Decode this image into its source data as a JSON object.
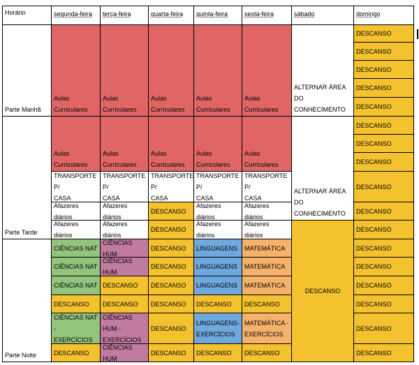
{
  "colors": {
    "red": "#e06666",
    "yellow": "#f4c22f",
    "green": "#93c47d",
    "purple": "#c27ba0",
    "blue": "#6fa8dc",
    "orange": "#f6b26b",
    "white": "#ffffff"
  },
  "header": {
    "horario": "Horário",
    "days": [
      "segunda-feira",
      "terça-feira",
      "quarta-feira",
      "quinta-feira",
      "sexta-feira",
      "sábado",
      "domingo"
    ]
  },
  "periods": [
    "Parte Manhã",
    "Parte Tarde",
    "Parte Noite"
  ],
  "blocks": {
    "manha_aulas": [
      "Aulas\nCurriculares",
      "Aulas\nCurriculares",
      "Aulas\nCurriculares",
      "Aulas\nCurriculares",
      "Aulas\nCurriculares"
    ],
    "sab_manha": "ALTERNAR ÁREA DO\nCONHECIMENTO",
    "tarde_aulas": [
      "Aulas\nCurriculares",
      "Aulas\nCurriculares",
      "Aulas\nCurriculares",
      "Aulas\nCurriculares",
      "Aulas\nCurriculares"
    ],
    "transporte": [
      "TRANSPORTE P/\nCASA",
      "TRANSPORTE P/\nCASA",
      "TRANSPORTE P/\nCASA",
      "TRANSPORTE P/\nCASA",
      "TRANSPORTE P/\nCASA"
    ],
    "afazeres1": [
      "Afazeres diários",
      "Afazeres diários",
      "DESCANSO",
      "Afazeres diários",
      "Afazeres diários"
    ],
    "afazeres2": [
      "Afazeres diários",
      "Afazeres diários",
      "DESCANSO",
      "Afazeres diários",
      "Afazeres diários"
    ],
    "sab_tarde": "ALTERNAR ÁREA DO\nCONHECIMENTO",
    "noite_rows": [
      [
        "CIÊNCIAS NAT",
        "CIÊNCIAS HUM",
        "DESCANSO",
        "LINGUAGENS",
        "MATEMÁTICA"
      ],
      [
        "CIÊNCIAS NAT",
        "CIÊNCIAS HUM",
        "DESCANSO",
        "LINGUAGENS",
        "MATEMÁTICA"
      ],
      [
        "CIÊNCIAS NAT",
        "DESCANSO",
        "DESCANSO",
        "LINGUAGENS",
        "MATEMÁTICA"
      ],
      [
        "DESCANSO",
        "DESCANSO",
        "DESCANSO",
        "DESCANSO",
        "DESCANSO"
      ],
      [
        "CIÊNCIAS NAT -\nEXERCÍCIOS",
        "CIÊNCIAS HUM -\nEXERCÍCIOS",
        "DESCANSO",
        "LINGUAGENS-\nEXERCÍCIOS",
        "MATEMÁTICA -\nEXERCÍCIOS"
      ],
      [
        "DESCANSO",
        "CIÊNCIAS HUM",
        "DESCANSO",
        "DESCANSO",
        "DESCANSO"
      ]
    ],
    "sab_noite": "DESCANSO"
  },
  "domingo": [
    "DESCANSO",
    "DESCANSO",
    "DESCANSO",
    "DESCANSO",
    "DESCANSO",
    "DESCANSO",
    "DESCANSO",
    "DESCANSO",
    "DESCANSO",
    "DESCANSO",
    "DESCANSO",
    "DESCANSO",
    "DESCANSO",
    "DESCANSO",
    "DESCANSO",
    "DESCANSO",
    "DESCANSO",
    "DESCANSO",
    "DESCANSO"
  ]
}
